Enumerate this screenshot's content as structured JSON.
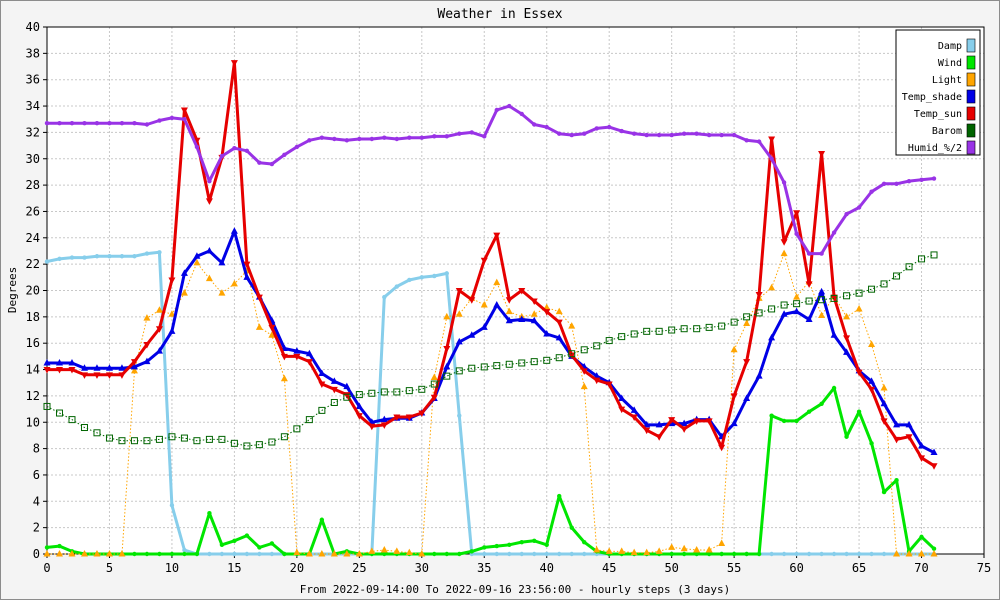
{
  "chart_data": {
    "type": "line",
    "title": "Weather in Essex",
    "xlabel": "From 2022-09-14:00 To 2022-09-16 23:56:00 - hourly steps (3 days)",
    "ylabel": "Degrees",
    "xlim": [
      0,
      75
    ],
    "ylim": [
      0,
      40
    ],
    "xticks": [
      0,
      5,
      10,
      15,
      20,
      25,
      30,
      35,
      40,
      45,
      50,
      55,
      60,
      65,
      70,
      75
    ],
    "yticks": [
      0,
      2,
      4,
      6,
      8,
      10,
      12,
      14,
      16,
      18,
      20,
      22,
      24,
      26,
      28,
      30,
      32,
      34,
      36,
      38,
      40
    ],
    "grid": true,
    "legend_position": "top-right",
    "x": [
      0,
      1,
      2,
      3,
      4,
      5,
      6,
      7,
      8,
      9,
      10,
      11,
      12,
      13,
      14,
      15,
      16,
      17,
      18,
      19,
      20,
      21,
      22,
      23,
      24,
      25,
      26,
      27,
      28,
      29,
      30,
      31,
      32,
      33,
      34,
      35,
      36,
      37,
      38,
      39,
      40,
      41,
      42,
      43,
      44,
      45,
      46,
      47,
      48,
      49,
      50,
      51,
      52,
      53,
      54,
      55,
      56,
      57,
      58,
      59,
      60,
      61,
      62,
      63,
      64,
      65,
      66,
      67,
      68,
      69,
      70,
      71
    ],
    "series": [
      {
        "name": "Damp",
        "color": "#87ceeb",
        "style": "line",
        "marker": "dot",
        "values": [
          22.2,
          22.4,
          22.5,
          22.5,
          22.6,
          22.6,
          22.6,
          22.6,
          22.8,
          22.9,
          3.7,
          0.3,
          0,
          0,
          0,
          0,
          0,
          0,
          0,
          0,
          0,
          0,
          0,
          0,
          0,
          0,
          0,
          19.5,
          20.3,
          20.8,
          21,
          21.1,
          21.3,
          10.5,
          0,
          0,
          0,
          0,
          0,
          0,
          0,
          0,
          0,
          0,
          0,
          0,
          0,
          0,
          0,
          0,
          0,
          0,
          0,
          0,
          0,
          0,
          0,
          0,
          0,
          0,
          0,
          0,
          0,
          0,
          0,
          0,
          0,
          0,
          0,
          0,
          0,
          0
        ]
      },
      {
        "name": "Wind",
        "color": "#00e600",
        "style": "line",
        "marker": "dot",
        "values": [
          0.5,
          0.6,
          0.2,
          0,
          0,
          0,
          0,
          0,
          0,
          0,
          0,
          0,
          0,
          3.1,
          0.7,
          1,
          1.4,
          0.5,
          0.8,
          0,
          0,
          0,
          2.6,
          0,
          0.2,
          0,
          0,
          0,
          0,
          0,
          0,
          0,
          0,
          0,
          0.2,
          0.5,
          0.6,
          0.7,
          0.9,
          1,
          0.7,
          4.4,
          2,
          0.9,
          0.2,
          0,
          0,
          0,
          0,
          0,
          0,
          0,
          0,
          0,
          0,
          0,
          0,
          0,
          10.5,
          10.1,
          10.1,
          10.8,
          11.4,
          12.6,
          8.9,
          10.8,
          8.4,
          4.7,
          5.6,
          0.2,
          1.3,
          0.4
        ]
      },
      {
        "name": "Light",
        "color": "#ffa500",
        "style": "dotted",
        "marker": "triangle-up",
        "values": [
          0,
          0,
          0,
          0,
          0,
          0,
          0,
          13.9,
          17.9,
          18.5,
          18.2,
          19.8,
          22.1,
          20.9,
          19.8,
          20.5,
          21.5,
          17.2,
          16.6,
          13.3,
          0.1,
          0,
          0,
          0,
          0,
          0,
          0.2,
          0.3,
          0.2,
          0.1,
          0,
          13.4,
          18,
          18.2,
          19.4,
          18.9,
          20.6,
          18.4,
          18,
          18.2,
          18.7,
          18.4,
          17.3,
          12.7,
          0.3,
          0.2,
          0.2,
          0.1,
          0.1,
          0.2,
          0.5,
          0.4,
          0.3,
          0.3,
          0.8,
          15.5,
          17.5,
          19.4,
          20.2,
          22.8,
          19.5,
          20.7,
          18.1,
          19.6,
          18,
          18.6,
          15.9,
          12.6,
          0,
          0,
          0,
          0
        ]
      },
      {
        "name": "Temp_shade",
        "color": "#0000e6",
        "style": "line",
        "marker": "triangle-up",
        "values": [
          14.5,
          14.5,
          14.5,
          14.1,
          14.1,
          14.1,
          14.1,
          14.2,
          14.6,
          15.4,
          16.9,
          21.3,
          22.6,
          23,
          22.1,
          24.5,
          21,
          19.5,
          17.7,
          15.6,
          15.4,
          15.2,
          13.7,
          13.1,
          12.7,
          11.2,
          10,
          10.2,
          10.3,
          10.3,
          10.7,
          11.8,
          14.2,
          16.1,
          16.6,
          17.2,
          18.9,
          17.7,
          17.8,
          17.7,
          16.7,
          16.4,
          15,
          14.2,
          13.5,
          13,
          11.8,
          10.9,
          9.8,
          9.8,
          9.9,
          9.9,
          10.2,
          10.2,
          8.9,
          9.9,
          11.8,
          13.5,
          16.4,
          18.2,
          18.4,
          17.8,
          19.9,
          16.6,
          15.3,
          13.9,
          13.1,
          11.4,
          9.8,
          9.8,
          8.2,
          7.7
        ]
      },
      {
        "name": "Temp_sun",
        "color": "#e60000",
        "style": "line",
        "marker": "triangle-down",
        "values": [
          14,
          14,
          14,
          13.6,
          13.6,
          13.6,
          13.6,
          14.6,
          15.9,
          17.1,
          20.8,
          33.7,
          31.4,
          26.8,
          30.1,
          37.3,
          22,
          19.5,
          17.2,
          15,
          15,
          14.6,
          12.9,
          12.5,
          12.1,
          10.5,
          9.7,
          9.8,
          10.4,
          10.4,
          10.7,
          11.9,
          15.6,
          20,
          19.3,
          22.3,
          24.2,
          19.3,
          20,
          19.2,
          18.4,
          17.6,
          15.1,
          13.9,
          13.2,
          12.9,
          11,
          10.4,
          9.4,
          8.9,
          10.2,
          9.5,
          10.1,
          10.1,
          8.1,
          12,
          14.6,
          19.7,
          31.5,
          23.7,
          25.9,
          20.5,
          30.4,
          19.5,
          16.4,
          13.8,
          12.5,
          10.1,
          8.7,
          8.9,
          7.3,
          6.7
        ]
      },
      {
        "name": "Barom",
        "color": "#006400",
        "style": "dotted",
        "marker": "square",
        "values": [
          11.2,
          10.7,
          10.2,
          9.6,
          9.2,
          8.8,
          8.6,
          8.6,
          8.6,
          8.7,
          8.9,
          8.8,
          8.6,
          8.7,
          8.7,
          8.4,
          8.2,
          8.3,
          8.5,
          8.9,
          9.5,
          10.2,
          10.9,
          11.5,
          11.9,
          12.1,
          12.2,
          12.3,
          12.3,
          12.4,
          12.5,
          12.9,
          13.5,
          13.9,
          14.1,
          14.2,
          14.3,
          14.4,
          14.5,
          14.6,
          14.7,
          14.9,
          15.2,
          15.5,
          15.8,
          16.2,
          16.5,
          16.7,
          16.9,
          16.9,
          17,
          17.1,
          17.1,
          17.2,
          17.3,
          17.6,
          18,
          18.3,
          18.6,
          18.9,
          19,
          19.2,
          19.3,
          19.4,
          19.6,
          19.8,
          20.1,
          20.5,
          21.1,
          21.8,
          22.4,
          22.7
        ]
      },
      {
        "name": "Humid_%/2",
        "color": "#9933e6",
        "style": "line",
        "marker": "dot",
        "values": [
          32.7,
          32.7,
          32.7,
          32.7,
          32.7,
          32.7,
          32.7,
          32.7,
          32.6,
          32.9,
          33.1,
          33,
          30.9,
          28.3,
          30.2,
          30.8,
          30.6,
          29.7,
          29.6,
          30.3,
          30.9,
          31.4,
          31.6,
          31.5,
          31.4,
          31.5,
          31.5,
          31.6,
          31.5,
          31.6,
          31.6,
          31.7,
          31.7,
          31.9,
          32,
          31.7,
          33.7,
          34,
          33.4,
          32.6,
          32.4,
          31.9,
          31.8,
          31.9,
          32.3,
          32.4,
          32.1,
          31.9,
          31.8,
          31.8,
          31.8,
          31.9,
          31.9,
          31.8,
          31.8,
          31.8,
          31.4,
          31.3,
          30,
          28.2,
          24.3,
          22.8,
          22.8,
          24.4,
          25.8,
          26.3,
          27.5,
          28.1,
          28.1,
          28.3,
          28.4,
          28.5
        ]
      }
    ]
  }
}
